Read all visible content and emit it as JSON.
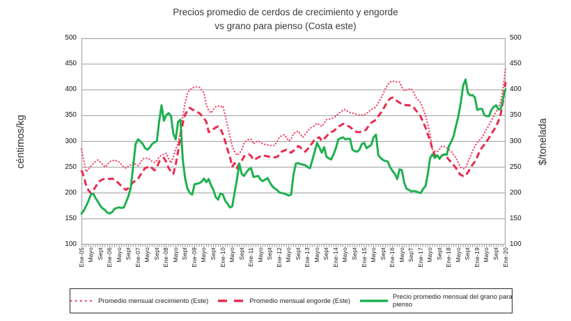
{
  "chart_data": {
    "type": "line",
    "title_line1": "Precios promedio de cerdos de crecimiento y engorde",
    "title_line2": "vs grano para pienso (Costa este)",
    "ylabel_left": "céntimos/kg",
    "ylabel_right": "$/tonelada",
    "ylim": [
      100,
      500
    ],
    "y_ticks": [
      500,
      450,
      400,
      350,
      300,
      250,
      200,
      150,
      100
    ],
    "x_months_per_label": 4,
    "x_tick_labels": [
      "Ene-05",
      "Mayo",
      "Sept",
      "Ene-06",
      "Mayo",
      "Sept",
      "Ene-07",
      "Mayo",
      "Sept",
      "Ene-08",
      "Mayo",
      "Sept",
      "Ene-09",
      "Mayo",
      "Sept",
      "Ene-10",
      "Mayo",
      "Sept",
      "Ene-11",
      "Mayo",
      "Sept",
      "Ene-12",
      "Mayo",
      "Sept",
      "Ene-13",
      "Mayo",
      "Sept",
      "Ene-14",
      "Mayo",
      "Sept",
      "Ene-15",
      "Mayo",
      "Sept",
      "Ene-16",
      "Mayo",
      "SepT",
      "Ene-17",
      "Mayo",
      "Sept",
      "Ene-18",
      "Mayo",
      "Sept",
      "Ene-19",
      "Mayo",
      "Sept",
      "Ene-20"
    ],
    "grid_color": "#9b9b9b",
    "frame_color": "#ababab",
    "legend_position": "bottom-boxed",
    "series": [
      {
        "name": "Promedio mensual crecimiento (Este)",
        "style": "dotted",
        "color": "#f2496e",
        "values": [
          285,
          262,
          241,
          246,
          252,
          257,
          261,
          264,
          260,
          255,
          250,
          255,
          261,
          262,
          264,
          262,
          260,
          255,
          250,
          248,
          252,
          255,
          259,
          256,
          253,
          258,
          266,
          267,
          268,
          265,
          261,
          259,
          263,
          270,
          273,
          275,
          277,
          266,
          258,
          270,
          285,
          295,
          320,
          349,
          375,
          394,
          400,
          403,
          405,
          406,
          405,
          400,
          394,
          371,
          360,
          355,
          362,
          367,
          369,
          367,
          369,
          350,
          331,
          310,
          291,
          280,
          273,
          277,
          283,
          297,
          301,
          304,
          304,
          295,
          299,
          301,
          298,
          295,
          294,
          293,
          292,
          292,
          292,
          300,
          308,
          311,
          313,
          307,
          301,
          305,
          315,
          318,
          320,
          314,
          308,
          314,
          320,
          325,
          328,
          331,
          335,
          332,
          329,
          335,
          342,
          343,
          344,
          346,
          349,
          353,
          358,
          360,
          362,
          358,
          356,
          355,
          354,
          352,
          351,
          351,
          351,
          354,
          358,
          362,
          364,
          367,
          375,
          383,
          392,
          402,
          410,
          415,
          417,
          416,
          415,
          415,
          405,
          398,
          400,
          401,
          402,
          395,
          385,
          380,
          375,
          363,
          351,
          332,
          313,
          284,
          281,
          280,
          285,
          291,
          290,
          288,
          284,
          280,
          274,
          268,
          258,
          250,
          247,
          248,
          260,
          271,
          281,
          291,
          298,
          303,
          308,
          316,
          324,
          332,
          340,
          349,
          358,
          365,
          378,
          405,
          442
        ]
      },
      {
        "name": "Promedio mensual engorde (Este)",
        "style": "dashed",
        "color": "#e9294d",
        "values": [
          244,
          232,
          214,
          205,
          200,
          205,
          212,
          220,
          224,
          226,
          228,
          228,
          227,
          228,
          226,
          222,
          218,
          213,
          209,
          206,
          210,
          216,
          221,
          224,
          227,
          235,
          242,
          248,
          250,
          252,
          248,
          244,
          250,
          261,
          265,
          268,
          260,
          248,
          242,
          237,
          255,
          280,
          310,
          335,
          352,
          360,
          365,
          362,
          360,
          357,
          355,
          350,
          345,
          338,
          318,
          320,
          324,
          327,
          329,
          325,
          314,
          300,
          284,
          270,
          251,
          258,
          248,
          258,
          262,
          271,
          273,
          275,
          272,
          264,
          266,
          269,
          271,
          273,
          272,
          271,
          270,
          269,
          269,
          270,
          274,
          280,
          282,
          284,
          281,
          278,
          282,
          286,
          291,
          288,
          283,
          280,
          285,
          291,
          297,
          304,
          306,
          308,
          301,
          305,
          310,
          315,
          318,
          320,
          324,
          329,
          331,
          334,
          332,
          330,
          328,
          324,
          320,
          318,
          318,
          319,
          320,
          324,
          331,
          336,
          339,
          342,
          349,
          355,
          362,
          370,
          378,
          383,
          385,
          382,
          378,
          375,
          372,
          371,
          370,
          370,
          369,
          366,
          360,
          354,
          348,
          338,
          327,
          314,
          301,
          285,
          273,
          270,
          268,
          272,
          275,
          270,
          264,
          259,
          254,
          248,
          240,
          235,
          233,
          233,
          240,
          248,
          255,
          261,
          270,
          281,
          288,
          294,
          300,
          307,
          315,
          322,
          329,
          340,
          354,
          380,
          415
        ]
      },
      {
        "name": "Precio promedio mensual del grano para pienso",
        "style": "solid",
        "color": "#1db04e",
        "values": [
          160,
          166,
          175,
          185,
          197,
          199,
          190,
          183,
          175,
          170,
          167,
          162,
          160,
          163,
          169,
          171,
          172,
          171,
          172,
          183,
          195,
          212,
          254,
          295,
          304,
          300,
          295,
          287,
          284,
          288,
          295,
          298,
          301,
          340,
          370,
          340,
          351,
          355,
          349,
          315,
          304,
          338,
          342,
          264,
          228,
          208,
          200,
          197,
          217,
          218,
          219,
          222,
          228,
          221,
          227,
          215,
          206,
          192,
          187,
          199,
          197,
          185,
          179,
          172,
          174,
          201,
          226,
          257,
          237,
          233,
          240,
          246,
          248,
          231,
          232,
          233,
          226,
          223,
          226,
          229,
          220,
          213,
          209,
          206,
          201,
          200,
          199,
          197,
          195,
          197,
          236,
          257,
          258,
          256,
          255,
          254,
          250,
          248,
          264,
          280,
          297,
          288,
          278,
          289,
          270,
          267,
          265,
          275,
          287,
          304,
          306,
          308,
          304,
          305,
          305,
          284,
          281,
          280,
          284,
          295,
          297,
          287,
          290,
          293,
          308,
          313,
          273,
          268,
          264,
          262,
          261,
          250,
          243,
          237,
          227,
          246,
          244,
          220,
          208,
          206,
          203,
          204,
          203,
          201,
          200,
          208,
          213,
          237,
          268,
          275,
          268,
          273,
          266,
          273,
          275,
          274,
          291,
          300,
          311,
          331,
          349,
          375,
          408,
          420,
          394,
          389,
          390,
          385,
          361,
          363,
          363,
          351,
          349,
          349,
          361,
          367,
          370,
          362,
          363,
          384,
          401
        ]
      }
    ]
  }
}
